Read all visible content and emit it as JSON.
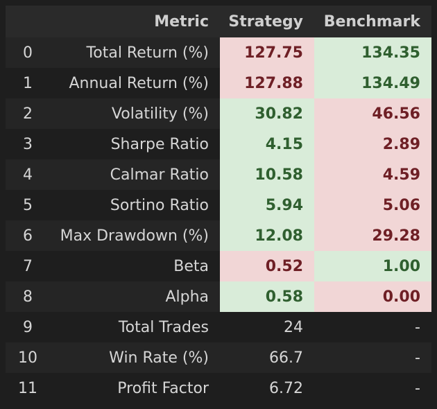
{
  "table": {
    "headers": {
      "index": "",
      "metric": "Metric",
      "strategy": "Strategy",
      "benchmark": "Benchmark"
    },
    "rows": [
      {
        "index": "0",
        "metric": "Total Return (%)",
        "strategy": "127.75",
        "benchmark": "134.35",
        "strategy_status": "bad",
        "benchmark_status": "good"
      },
      {
        "index": "1",
        "metric": "Annual Return (%)",
        "strategy": "127.88",
        "benchmark": "134.49",
        "strategy_status": "bad",
        "benchmark_status": "good"
      },
      {
        "index": "2",
        "metric": "Volatility (%)",
        "strategy": "30.82",
        "benchmark": "46.56",
        "strategy_status": "good",
        "benchmark_status": "bad"
      },
      {
        "index": "3",
        "metric": "Sharpe Ratio",
        "strategy": "4.15",
        "benchmark": "2.89",
        "strategy_status": "good",
        "benchmark_status": "bad"
      },
      {
        "index": "4",
        "metric": "Calmar Ratio",
        "strategy": "10.58",
        "benchmark": "4.59",
        "strategy_status": "good",
        "benchmark_status": "bad"
      },
      {
        "index": "5",
        "metric": "Sortino Ratio",
        "strategy": "5.94",
        "benchmark": "5.06",
        "strategy_status": "good",
        "benchmark_status": "bad"
      },
      {
        "index": "6",
        "metric": "Max Drawdown (%)",
        "strategy": "12.08",
        "benchmark": "29.28",
        "strategy_status": "good",
        "benchmark_status": "bad"
      },
      {
        "index": "7",
        "metric": "Beta",
        "strategy": "0.52",
        "benchmark": "1.00",
        "strategy_status": "bad",
        "benchmark_status": "good"
      },
      {
        "index": "8",
        "metric": "Alpha",
        "strategy": "0.58",
        "benchmark": "0.00",
        "strategy_status": "good",
        "benchmark_status": "bad"
      },
      {
        "index": "9",
        "metric": "Total Trades",
        "strategy": "24",
        "benchmark": "-",
        "strategy_status": "neutral",
        "benchmark_status": "neutral"
      },
      {
        "index": "10",
        "metric": "Win Rate (%)",
        "strategy": "66.7",
        "benchmark": "-",
        "strategy_status": "neutral",
        "benchmark_status": "neutral"
      },
      {
        "index": "11",
        "metric": "Profit Factor",
        "strategy": "6.72",
        "benchmark": "-",
        "strategy_status": "neutral",
        "benchmark_status": "neutral"
      }
    ]
  },
  "colors": {
    "page_background": "#1e1e1e",
    "header_background": "#2a2a2a",
    "good_background": "#d9ecd9",
    "good_text": "#2f5f2f",
    "bad_background": "#f1d6d6",
    "bad_text": "#6e1f25"
  }
}
